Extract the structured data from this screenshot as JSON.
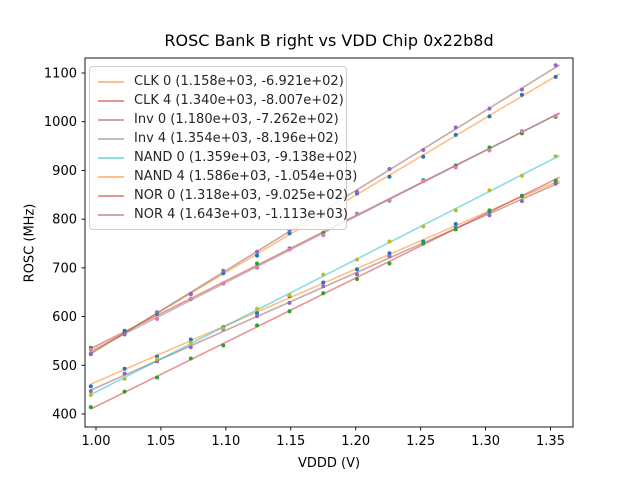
{
  "figure": {
    "title": "ROSC Bank B right vs VDD Chip 0x22b8d"
  },
  "chart_data": {
    "type": "scatter",
    "title": "ROSC Bank B right vs VDD Chip 0x22b8d",
    "xlabel": "VDDD (V)",
    "ylabel": "ROSC (MHz)",
    "xlim": [
      0.9915,
      1.3673
    ],
    "ylim": [
      371,
      1131
    ],
    "grid": false,
    "legend_position": "upper-left",
    "line_alpha": 0.5,
    "xticks": [
      {
        "v": 1.0,
        "label": "1.00"
      },
      {
        "v": 1.05,
        "label": "1.05"
      },
      {
        "v": 1.1,
        "label": "1.10"
      },
      {
        "v": 1.15,
        "label": "1.15"
      },
      {
        "v": 1.2,
        "label": "1.20"
      },
      {
        "v": 1.25,
        "label": "1.25"
      },
      {
        "v": 1.3,
        "label": "1.30"
      },
      {
        "v": 1.35,
        "label": "1.35"
      }
    ],
    "yticks": [
      {
        "v": 400,
        "label": "400"
      },
      {
        "v": 500,
        "label": "500"
      },
      {
        "v": 600,
        "label": "600"
      },
      {
        "v": 700,
        "label": "700"
      },
      {
        "v": 800,
        "label": "800"
      },
      {
        "v": 900,
        "label": "900"
      },
      {
        "v": 1000,
        "label": "1000"
      },
      {
        "v": 1100,
        "label": "1100"
      }
    ],
    "x": [
      0.996,
      1.022,
      1.047,
      1.073,
      1.098,
      1.124,
      1.149,
      1.175,
      1.201,
      1.226,
      1.252,
      1.277,
      1.303,
      1.328,
      1.354
    ],
    "fit_line_x_range": [
      0.996,
      1.357
    ],
    "series": [
      {
        "name": "CLK 0",
        "legend_label": "CLK 0 (1.158e+03, -6.921e+02)",
        "slope": 1158.0,
        "intercept": -692.1,
        "line_color": "#ff7f0e",
        "marker_color": "#1f77b4",
        "y": [
          457,
          493,
          518,
          553,
          578,
          607,
          642,
          670,
          697,
          730,
          754,
          790,
          816,
          848,
          873
        ]
      },
      {
        "name": "CLK 4",
        "legend_label": "CLK 4 (1.340e+03, -8.007e+02)",
        "slope": 1340.0,
        "intercept": -800.7,
        "line_color": "#d62728",
        "marker_color": "#2ca02c",
        "y": [
          536,
          567,
          605,
          636,
          668,
          709,
          740,
          772,
          811,
          838,
          880,
          910,
          947,
          976,
          1010
        ]
      },
      {
        "name": "Inv 0",
        "legend_label": "Inv 0 (1.180e+03, -7.262e+02)",
        "slope": 1180.0,
        "intercept": -726.2,
        "line_color": "#8c564b",
        "marker_color": "#9467bd",
        "y": [
          447,
          483,
          508,
          537,
          574,
          601,
          628,
          662,
          687,
          724,
          750,
          783,
          808,
          837,
          874
        ]
      },
      {
        "name": "Inv 4",
        "legend_label": "Inv 4 (1.354e+03, -8.196e+02)",
        "slope": 1354.0,
        "intercept": -819.6,
        "line_color": "#7f7f7f",
        "marker_color": "#e377c2",
        "y": [
          532,
          563,
          595,
          637,
          668,
          700,
          738,
          767,
          810,
          839,
          878,
          906,
          941,
          981,
          1012
        ]
      },
      {
        "name": "NAND 0",
        "legend_label": "NAND 0 (1.359e+03, -9.138e+02)",
        "slope": 1359.0,
        "intercept": -913.8,
        "line_color": "#17becf",
        "marker_color": "#bcbd22",
        "y": [
          439,
          472,
          513,
          546,
          576,
          616,
          644,
          686,
          717,
          754,
          785,
          818,
          859,
          889,
          929
        ]
      },
      {
        "name": "NAND 4",
        "legend_label": "NAND 4 (1.586e+03, -1.054e+03)",
        "slope": 1586.0,
        "intercept": -1054.0,
        "line_color": "#ff7f0e",
        "marker_color": "#1f77b4",
        "y": [
          523,
          571,
          608,
          646,
          689,
          725,
          771,
          809,
          853,
          887,
          928,
          973,
          1011,
          1055,
          1092
        ]
      },
      {
        "name": "NOR 0",
        "legend_label": "NOR 0 (1.318e+03, -9.025e+02)",
        "slope": 1318.0,
        "intercept": -902.5,
        "line_color": "#d62728",
        "marker_color": "#2ca02c",
        "y": [
          414,
          446,
          475,
          514,
          541,
          582,
          611,
          648,
          677,
          709,
          750,
          779,
          818,
          847,
          879
        ]
      },
      {
        "name": "NOR 4",
        "legend_label": "NOR 4 (1.643e+03, -1.113e+03)",
        "slope": 1643.0,
        "intercept": -1113.0,
        "line_color": "#8c564b",
        "marker_color": "#9467bd",
        "y": [
          524,
          564,
          609,
          646,
          694,
          733,
          777,
          815,
          856,
          903,
          942,
          988,
          1027,
          1066,
          1116
        ]
      }
    ]
  }
}
